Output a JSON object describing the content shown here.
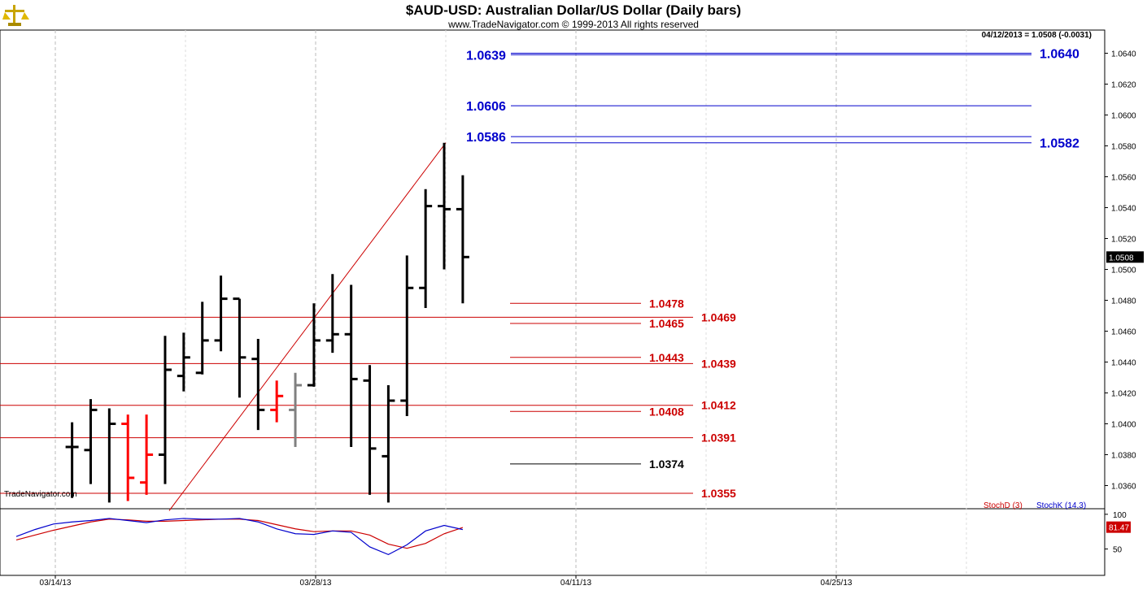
{
  "header": {
    "title": "$AUD-USD:  Australian Dollar/US Dollar  (Daily bars)",
    "subtitle": "www.TradeNavigator.com © 1999-2013 All rights reserved",
    "quote": "04/12/2013 = 1.0508 (-0.0031)",
    "watermark": "TradeNavigator.com",
    "logo_icon": "scales-logo-icon"
  },
  "colors": {
    "price_bar": "#000000",
    "down_bar": "#ff0000",
    "neutral_bar": "#808080",
    "fib_red": "#cc0000",
    "fib_blue": "#0000cc",
    "stoch_d": "#cc0000",
    "stoch_k": "#0000cc",
    "grid": "#bbbbbb"
  },
  "chart_data": [
    {
      "type": "ohlc",
      "title": "$AUD-USD:  Australian Dollar/US Dollar  (Daily bars)",
      "ylim": [
        1.0345,
        1.0655
      ],
      "y_ticks": [
        "1.0360",
        "1.0380",
        "1.0400",
        "1.0420",
        "1.0440",
        "1.0460",
        "1.0480",
        "1.0500",
        "1.0520",
        "1.0540",
        "1.0560",
        "1.0580",
        "1.0600",
        "1.0620",
        "1.0640"
      ],
      "x_ticks": [
        "03/14/13",
        "03/28/13",
        "04/11/13",
        "04/25/13"
      ],
      "last_price": "1.0508",
      "bars": [
        {
          "date": "03/14/13",
          "o": 1.0385,
          "h": 1.0401,
          "l": 1.0352,
          "c": 1.0385,
          "color": "black"
        },
        {
          "date": "03/15/13",
          "o": 1.0383,
          "h": 1.0416,
          "l": 1.0361,
          "c": 1.0409,
          "color": "black"
        },
        {
          "date": "03/18/13",
          "o": null,
          "h": 1.041,
          "l": 1.0349,
          "c": 1.04,
          "color": "black"
        },
        {
          "date": "03/19/13",
          "o": 1.04,
          "h": 1.0406,
          "l": 1.035,
          "c": 1.0365,
          "color": "red"
        },
        {
          "date": "03/20/13",
          "o": 1.0362,
          "h": 1.0406,
          "l": 1.0354,
          "c": 1.038,
          "color": "red"
        },
        {
          "date": "03/21/13",
          "o": 1.038,
          "h": 1.0457,
          "l": 1.0361,
          "c": 1.0435,
          "color": "black"
        },
        {
          "date": "03/22/13",
          "o": 1.0431,
          "h": 1.0459,
          "l": 1.0421,
          "c": 1.0443,
          "color": "black"
        },
        {
          "date": "03/25/13",
          "o": 1.0433,
          "h": 1.0479,
          "l": 1.0432,
          "c": 1.0454,
          "color": "black"
        },
        {
          "date": "03/26/13",
          "o": 1.0454,
          "h": 1.0496,
          "l": 1.0447,
          "c": 1.0481,
          "color": "black"
        },
        {
          "date": "03/27/13",
          "o": 1.0481,
          "h": 1.0481,
          "l": 1.0417,
          "c": 1.0443,
          "color": "black"
        },
        {
          "date": "03/28/13",
          "o": 1.0442,
          "h": 1.0455,
          "l": 1.0396,
          "c": 1.0409,
          "color": "black"
        },
        {
          "date": "03/29/13",
          "o": 1.0409,
          "h": 1.0428,
          "l": 1.0401,
          "c": 1.0418,
          "color": "red"
        },
        {
          "date": "04/01/13",
          "o": 1.0409,
          "h": 1.0433,
          "l": 1.0385,
          "c": 1.0425,
          "color": "gray"
        },
        {
          "date": "04/02/13",
          "o": 1.0425,
          "h": 1.0478,
          "l": 1.0424,
          "c": 1.0454,
          "color": "black"
        },
        {
          "date": "04/03/13",
          "o": 1.0454,
          "h": 1.0497,
          "l": 1.0446,
          "c": 1.0458,
          "color": "black"
        },
        {
          "date": "04/04/13",
          "o": 1.0458,
          "h": 1.049,
          "l": 1.0385,
          "c": 1.0429,
          "color": "black"
        },
        {
          "date": "04/05/13",
          "o": 1.0428,
          "h": 1.0438,
          "l": 1.0354,
          "c": 1.0384,
          "color": "black"
        },
        {
          "date": "04/08/13",
          "o": 1.0379,
          "h": 1.0425,
          "l": 1.0349,
          "c": 1.0415,
          "color": "black"
        },
        {
          "date": "04/09/13",
          "o": 1.0415,
          "h": 1.0509,
          "l": 1.0405,
          "c": 1.0488,
          "color": "black"
        },
        {
          "date": "04/10/13",
          "o": 1.0488,
          "h": 1.0552,
          "l": 1.0475,
          "c": 1.0541,
          "color": "black"
        },
        {
          "date": "04/11/13",
          "o": 1.0541,
          "h": 1.0582,
          "l": 1.05,
          "c": 1.0539,
          "color": "black"
        },
        {
          "date": "04/12/13",
          "o": 1.0539,
          "h": 1.0561,
          "l": 1.0478,
          "c": 1.0508,
          "color": "black"
        }
      ],
      "trendline": {
        "from": {
          "date": "03/21/13",
          "price": 1.0349
        },
        "to": {
          "date": "04/11/13",
          "price": 1.0582
        }
      },
      "fib_levels": [
        {
          "label": "1.0478",
          "value": 1.0478,
          "color": "red",
          "line_start": "04/08/13",
          "label_side": "left"
        },
        {
          "label": "1.0469",
          "value": 1.0469,
          "color": "red",
          "line_start": "chart_left",
          "label_side": "right"
        },
        {
          "label": "1.0465",
          "value": 1.0465,
          "color": "red",
          "line_start": "04/08/13",
          "label_side": "left"
        },
        {
          "label": "1.0443",
          "value": 1.0443,
          "color": "red",
          "line_start": "04/08/13",
          "label_side": "left"
        },
        {
          "label": "1.0439",
          "value": 1.0439,
          "color": "red",
          "line_start": "chart_left",
          "label_side": "right"
        },
        {
          "label": "1.0412",
          "value": 1.0412,
          "color": "red",
          "line_start": "chart_left",
          "label_side": "right"
        },
        {
          "label": "1.0408",
          "value": 1.0408,
          "color": "red",
          "line_start": "04/08/13",
          "label_side": "left"
        },
        {
          "label": "1.0391",
          "value": 1.0391,
          "color": "red",
          "line_start": "chart_left",
          "label_side": "right"
        },
        {
          "label": "1.0374",
          "value": 1.0374,
          "color": "black",
          "line_start": "04/08/13",
          "label_side": "left"
        },
        {
          "label": "1.0355",
          "value": 1.0355,
          "color": "red",
          "line_start": "chart_left",
          "label_side": "right"
        }
      ],
      "projection_levels": [
        {
          "label": "1.0639",
          "value": 1.0639,
          "side": "left"
        },
        {
          "label": "1.0640",
          "value": 1.064,
          "side": "right"
        },
        {
          "label": "1.0606",
          "value": 1.0606,
          "side": "left"
        },
        {
          "label": "1.0586",
          "value": 1.0586,
          "side": "left"
        },
        {
          "label": "1.0582",
          "value": 1.0582,
          "side": "right"
        }
      ]
    },
    {
      "type": "line",
      "title": "",
      "legend": [
        "StochD (3)",
        "StochK (14,3)"
      ],
      "y_ticks": [
        "100",
        "50"
      ],
      "ylim": [
        12,
        108
      ],
      "last_value": "81.47",
      "x": [
        "03/11/13",
        "03/12/13",
        "03/13/13",
        "03/14/13",
        "03/15/13",
        "03/18/13",
        "03/19/13",
        "03/20/13",
        "03/21/13",
        "03/22/13",
        "03/25/13",
        "03/26/13",
        "03/27/13",
        "03/28/13",
        "03/29/13",
        "04/01/13",
        "04/02/13",
        "04/03/13",
        "04/04/13",
        "04/05/13",
        "04/08/13",
        "04/09/13",
        "04/10/13",
        "04/11/13",
        "04/12/13"
      ],
      "series": [
        {
          "name": "StochD (3)",
          "color": "red",
          "values": [
            63,
            70,
            77,
            83,
            89,
            93,
            92,
            90,
            90,
            91,
            92,
            93,
            93,
            91,
            85,
            79,
            75,
            76,
            76,
            70,
            57,
            51,
            58,
            72,
            81
          ]
        },
        {
          "name": "StochK (14,3)",
          "color": "blue",
          "values": [
            68,
            78,
            86,
            89,
            91,
            94,
            91,
            88,
            92,
            94,
            93,
            93,
            94,
            89,
            79,
            72,
            71,
            76,
            74,
            53,
            42,
            56,
            76,
            84,
            78
          ]
        }
      ]
    }
  ]
}
